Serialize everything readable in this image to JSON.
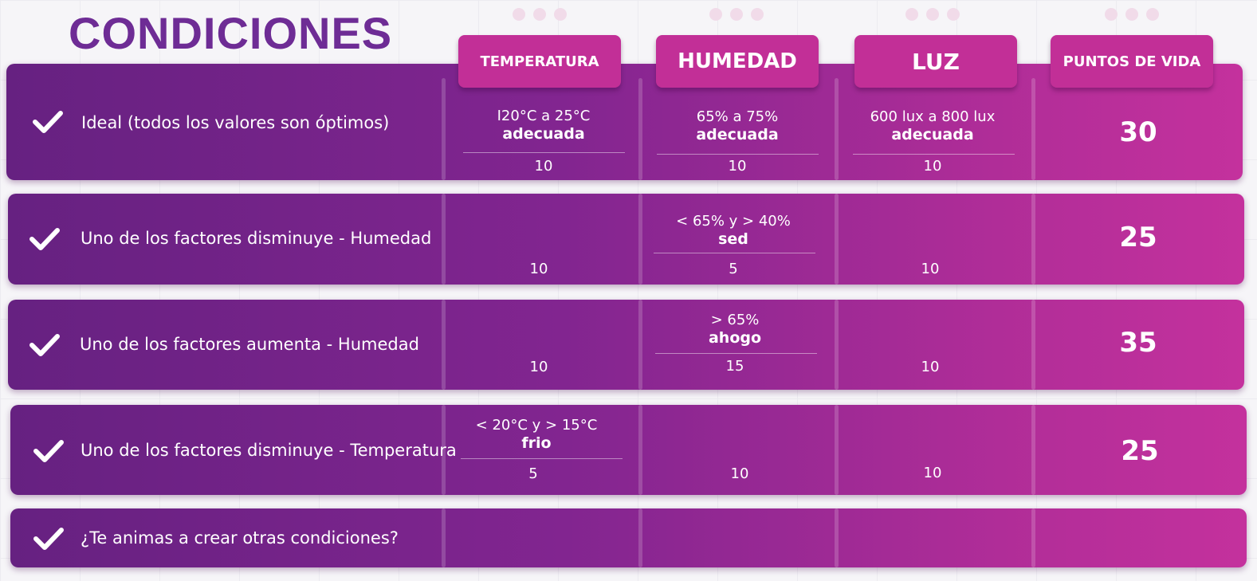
{
  "title": "CONDICIONES",
  "headers": {
    "temperatura": "TEMPERATURA",
    "humedad": "HUMEDAD",
    "luz": "LUZ",
    "puntos": "PUNTOS DE VIDA"
  },
  "rows": [
    {
      "label": "Ideal (todos los valores son óptimos)",
      "temperatura": {
        "range": "I20°C a 25°C",
        "state": "adecuada",
        "value": "10"
      },
      "humedad": {
        "range": "65% a 75%",
        "state": "adecuada",
        "value": "10"
      },
      "luz": {
        "range": "600 lux a 800 lux",
        "state": "adecuada",
        "value": "10"
      },
      "puntos": "30"
    },
    {
      "label": "Uno de los factores disminuye - Humedad",
      "temperatura": {
        "value": "10"
      },
      "humedad": {
        "range": "< 65% y > 40%",
        "state": "sed",
        "value": "5"
      },
      "luz": {
        "value": "10"
      },
      "puntos": "25"
    },
    {
      "label": "Uno de los factores aumenta - Humedad",
      "temperatura": {
        "value": "10"
      },
      "humedad": {
        "range": "> 65%",
        "state": "ahogo",
        "value": "15"
      },
      "luz": {
        "value": "10"
      },
      "puntos": "35"
    },
    {
      "label": "Uno de los factores disminuye - Temperatura",
      "temperatura": {
        "range": "< 20°C y > 15°C",
        "state": "frio",
        "value": "5"
      },
      "humedad": {
        "value": "10"
      },
      "luz": {
        "value": "10"
      },
      "puntos": "25"
    },
    {
      "label": "¿Te animas a crear otras condiciones?",
      "puntos": ""
    }
  ],
  "colors": {
    "title": "#6e2c95",
    "header": "#c22f97",
    "row_start": "#662181",
    "row_end": "#c4319d"
  },
  "icons": {
    "check": "check-icon"
  }
}
